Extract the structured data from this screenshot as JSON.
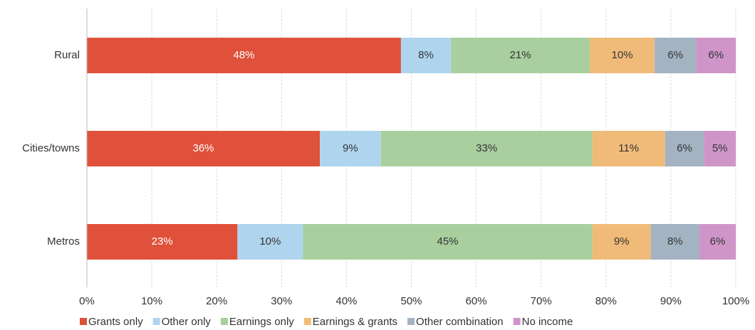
{
  "chart_data": {
    "type": "stacked-bar-horizontal",
    "categories": [
      "Rural",
      "Cities/towns",
      "Metros"
    ],
    "series": [
      {
        "name": "Grants only",
        "color": "#df513a",
        "values": [
          48.4,
          35.9,
          23.2
        ],
        "value_labels": [
          "48%",
          "36%",
          "23%"
        ]
      },
      {
        "name": "Other only",
        "color": "#afd5ee",
        "values": [
          7.7,
          9.4,
          10.1
        ],
        "value_labels": [
          "8%",
          "9%",
          "10%"
        ]
      },
      {
        "name": "Earnings only",
        "color": "#a9cf9f",
        "values": [
          21.4,
          32.6,
          44.6
        ],
        "value_labels": [
          "21%",
          "33%",
          "45%"
        ]
      },
      {
        "name": "Earnings & grants",
        "color": "#f0bb78",
        "values": [
          10.0,
          11.2,
          9.0
        ],
        "value_labels": [
          "10%",
          "11%",
          "9%"
        ]
      },
      {
        "name": "Other combination",
        "color": "#a3b3c2",
        "values": [
          6.4,
          6.0,
          7.5
        ],
        "value_labels": [
          "6%",
          "6%",
          "8%"
        ]
      },
      {
        "name": "No income",
        "color": "#cf95c9",
        "values": [
          6.1,
          4.9,
          5.6
        ],
        "value_labels": [
          "6%",
          "5%",
          "6%"
        ]
      }
    ],
    "xlim": [
      0,
      100
    ],
    "xticks": [
      {
        "value": 0,
        "label": "0%"
      },
      {
        "value": 10,
        "label": "10%"
      },
      {
        "value": 20,
        "label": "20%"
      },
      {
        "value": 30,
        "label": "30%"
      },
      {
        "value": 40,
        "label": "40%"
      },
      {
        "value": 50,
        "label": "50%"
      },
      {
        "value": 60,
        "label": "60%"
      },
      {
        "value": 70,
        "label": "70%"
      },
      {
        "value": 80,
        "label": "80%"
      },
      {
        "value": 90,
        "label": "90%"
      },
      {
        "value": 100,
        "label": "100%"
      }
    ],
    "grid": true,
    "legend": "bottom"
  }
}
